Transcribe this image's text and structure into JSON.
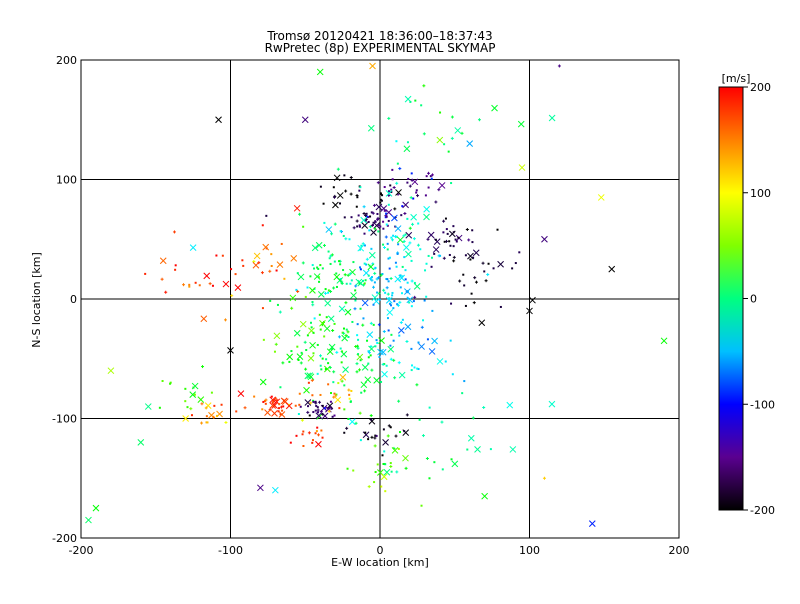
{
  "chart_data": {
    "type": "scatter",
    "title": "Tromsø 20120421 18:36:00–18:37:43",
    "subtitle": "RwPretec (8p) EXPERIMENTAL SKYMAP",
    "xlabel": "E-W location [km]",
    "ylabel": "N-S location [km]",
    "xlim": [
      -200,
      200
    ],
    "ylim": [
      -200,
      200
    ],
    "x_ticks": [
      -200,
      -100,
      0,
      100,
      200
    ],
    "y_ticks": [
      -200,
      -100,
      0,
      100,
      200
    ],
    "grid": true,
    "colorbar": {
      "label": "[m/s]",
      "range": [
        -200,
        200
      ],
      "ticks": [
        200,
        100,
        0,
        -100,
        -200
      ]
    },
    "clusters": [
      {
        "x": 5,
        "y": 70,
        "vel": -120,
        "spread_x": 8,
        "spread_y": 6,
        "n": 30
      },
      {
        "x": -10,
        "y": 65,
        "vel": -170,
        "spread_x": 6,
        "spread_y": 5,
        "n": 22
      },
      {
        "x": 20,
        "y": 95,
        "vel": -120,
        "spread_x": 10,
        "spread_y": 6,
        "n": 30
      },
      {
        "x": 50,
        "y": 50,
        "vel": -170,
        "spread_x": 15,
        "spread_y": 10,
        "n": 40
      },
      {
        "x": -15,
        "y": 85,
        "vel": -200,
        "spread_x": 18,
        "spread_y": 10,
        "n": 30
      },
      {
        "x": 0,
        "y": 30,
        "vel": -20,
        "spread_x": 22,
        "spread_y": 25,
        "n": 110
      },
      {
        "x": 5,
        "y": 10,
        "vel": -50,
        "spread_x": 12,
        "spread_y": 15,
        "n": 50
      },
      {
        "x": -30,
        "y": 20,
        "vel": 30,
        "spread_x": 18,
        "spread_y": 20,
        "n": 70
      },
      {
        "x": -40,
        "y": -40,
        "vel": 50,
        "spread_x": 20,
        "spread_y": 20,
        "n": 80
      },
      {
        "x": -10,
        "y": -60,
        "vel": 20,
        "spread_x": 18,
        "spread_y": 18,
        "n": 50
      },
      {
        "x": 15,
        "y": -40,
        "vel": -40,
        "spread_x": 20,
        "spread_y": 18,
        "n": 40
      },
      {
        "x": -70,
        "y": -90,
        "vel": 185,
        "spread_x": 10,
        "spread_y": 5,
        "n": 40
      },
      {
        "x": -40,
        "y": -92,
        "vel": -150,
        "spread_x": 6,
        "spread_y": 4,
        "n": 30
      },
      {
        "x": -30,
        "y": -80,
        "vel": 150,
        "spread_x": 10,
        "spread_y": 10,
        "n": 18
      },
      {
        "x": -45,
        "y": -115,
        "vel": 185,
        "spread_x": 5,
        "spread_y": 5,
        "n": 15
      },
      {
        "x": 0,
        "y": -110,
        "vel": -195,
        "spread_x": 10,
        "spread_y": 8,
        "n": 20
      },
      {
        "x": -115,
        "y": -95,
        "vel": 160,
        "spread_x": 6,
        "spread_y": 6,
        "n": 15
      },
      {
        "x": -130,
        "y": -80,
        "vel": 60,
        "spread_x": 10,
        "spread_y": 10,
        "n": 15
      },
      {
        "x": -120,
        "y": 20,
        "vel": 185,
        "spread_x": 15,
        "spread_y": 15,
        "n": 22
      },
      {
        "x": -75,
        "y": 30,
        "vel": 170,
        "spread_x": 12,
        "spread_y": 20,
        "n": 22
      },
      {
        "x": 30,
        "y": 140,
        "vel": 20,
        "spread_x": 25,
        "spread_y": 20,
        "n": 25
      },
      {
        "x": 40,
        "y": -120,
        "vel": 10,
        "spread_x": 30,
        "spread_y": 20,
        "n": 30
      },
      {
        "x": 60,
        "y": 20,
        "vel": -195,
        "spread_x": 15,
        "spread_y": 15,
        "n": 20
      },
      {
        "x": 0,
        "y": -140,
        "vel": 80,
        "spread_x": 15,
        "spread_y": 15,
        "n": 20
      }
    ],
    "scattered_points": [
      {
        "x": -108,
        "y": 150,
        "vel": -200,
        "marker": "x"
      },
      {
        "x": 155,
        "y": 25,
        "vel": -200,
        "marker": "x"
      },
      {
        "x": 190,
        "y": -35,
        "vel": 50,
        "marker": "x"
      },
      {
        "x": -180,
        "y": -60,
        "vel": 100,
        "marker": "x"
      },
      {
        "x": -190,
        "y": -175,
        "vel": 50,
        "marker": "x"
      },
      {
        "x": -195,
        "y": -185,
        "vel": 20,
        "marker": "x"
      },
      {
        "x": 142,
        "y": -188,
        "vel": -90,
        "marker": "x"
      },
      {
        "x": 115,
        "y": -88,
        "vel": -10,
        "marker": "x"
      },
      {
        "x": 148,
        "y": 85,
        "vel": 120,
        "marker": "x"
      },
      {
        "x": -160,
        "y": -120,
        "vel": 20,
        "marker": "x"
      },
      {
        "x": -145,
        "y": 32,
        "vel": 170,
        "marker": "x"
      },
      {
        "x": -155,
        "y": -90,
        "vel": 10,
        "marker": "x"
      },
      {
        "x": 120,
        "y": 195,
        "vel": -120,
        "marker": "+"
      },
      {
        "x": -5,
        "y": 195,
        "vel": 150,
        "marker": "x"
      },
      {
        "x": -40,
        "y": 190,
        "vel": 50,
        "marker": "x"
      },
      {
        "x": 110,
        "y": -150,
        "vel": 140,
        "marker": "+"
      },
      {
        "x": 95,
        "y": 110,
        "vel": 110,
        "marker": "x"
      },
      {
        "x": -70,
        "y": -160,
        "vel": -30,
        "marker": "x"
      },
      {
        "x": -80,
        "y": -158,
        "vel": -120,
        "marker": "x"
      },
      {
        "x": -100,
        "y": -43,
        "vel": -200,
        "marker": "x"
      },
      {
        "x": 100,
        "y": -10,
        "vel": -200,
        "marker": "x"
      },
      {
        "x": 102,
        "y": -1,
        "vel": -200,
        "marker": "x"
      },
      {
        "x": -125,
        "y": 43,
        "vel": -30,
        "marker": "x"
      },
      {
        "x": -130,
        "y": -100,
        "vel": 130,
        "marker": "x"
      },
      {
        "x": 60,
        "y": 130,
        "vel": -50,
        "marker": "x"
      },
      {
        "x": 40,
        "y": 133,
        "vel": 90,
        "marker": "x"
      },
      {
        "x": 70,
        "y": -165,
        "vel": 50,
        "marker": "x"
      },
      {
        "x": 110,
        "y": 50,
        "vel": -130,
        "marker": "x"
      },
      {
        "x": -50,
        "y": 150,
        "vel": -130,
        "marker": "x"
      }
    ]
  }
}
